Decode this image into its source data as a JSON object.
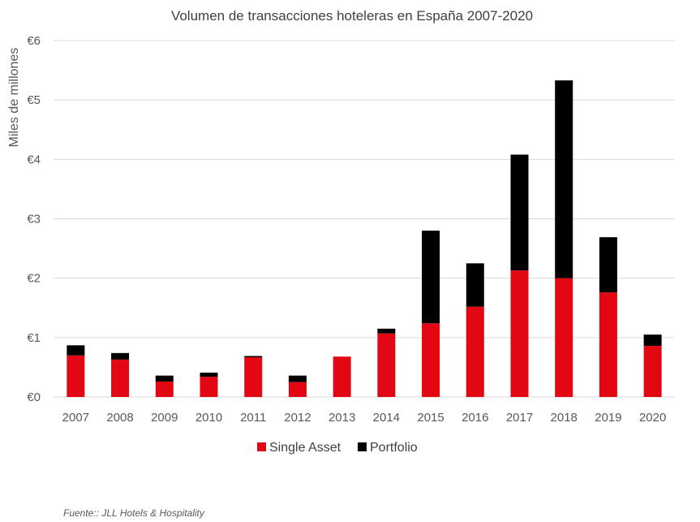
{
  "chart_data": {
    "type": "bar",
    "stacked": true,
    "title": "Volumen de transacciones hoteleras en España 2007-2020",
    "ylabel": "Miles de millones",
    "xlabel": "",
    "ylim": [
      0,
      6
    ],
    "yticks": [
      "€0",
      "€1",
      "€2",
      "€3",
      "€4",
      "€5",
      "€6"
    ],
    "grid": true,
    "legend_position": "bottom",
    "categories": [
      "2007",
      "2008",
      "2009",
      "2010",
      "2011",
      "2012",
      "2013",
      "2014",
      "2015",
      "2016",
      "2017",
      "2018",
      "2019",
      "2020"
    ],
    "series": [
      {
        "name": "Single Asset",
        "color": "#e30613",
        "values": [
          0.7,
          0.63,
          0.26,
          0.34,
          0.67,
          0.25,
          0.68,
          1.07,
          1.24,
          1.52,
          2.13,
          2.0,
          1.76,
          0.86
        ]
      },
      {
        "name": "Portfolio",
        "color": "#000000",
        "values": [
          0.17,
          0.11,
          0.1,
          0.07,
          0.02,
          0.11,
          0.0,
          0.08,
          1.56,
          0.73,
          1.95,
          3.33,
          0.93,
          0.19
        ]
      }
    ]
  },
  "source": "Fuente:: JLL Hotels & Hospitality"
}
